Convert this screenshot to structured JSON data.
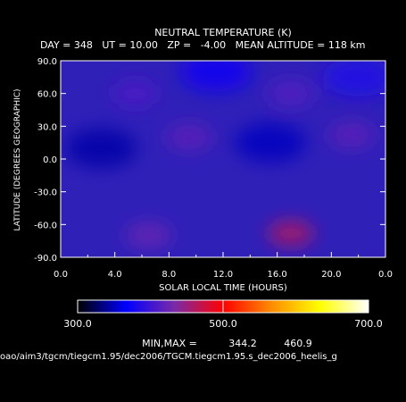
{
  "chart_data": {
    "type": "heatmap",
    "title": "NEUTRAL TEMPERATURE (K)",
    "subtitle": "DAY = 348   UT = 10.00   ZP =   -4.00   MEAN ALTITUDE = 118 km",
    "xlabel": "SOLAR LOCAL TIME (HOURS)",
    "ylabel": "LATITUDE (DEGREES GEOGRAPHIC)",
    "xlim": [
      0,
      24
    ],
    "ylim": [
      -90,
      90
    ],
    "x_tick_labels": [
      "0.0",
      "4.0",
      "8.0",
      "12.0",
      "16.0",
      "20.0",
      "0.0"
    ],
    "y_tick_labels": [
      "90.0",
      "60.0",
      "30.0",
      "0.0",
      "-30.0",
      "-60.0",
      "-90.0"
    ],
    "colorbar": {
      "range": [
        300,
        700
      ],
      "tick_labels": [
        "300.0",
        "500.0",
        "700.0"
      ],
      "stops": [
        "#000000",
        "#0000ff",
        "#7a2aa8",
        "#ff0000",
        "#ff8c00",
        "#ffff00",
        "#ffffff"
      ]
    },
    "minmax_label": "MIN,MAX =",
    "min": "344.2",
    "max": "460.9",
    "file_path": "oao/aim3/tgcm/tiegcm1.95/dec2006/TGCM.tiegcm1.95.s_dec2006_heelis_g",
    "field_features": [
      {
        "type": "cold",
        "x": 3.0,
        "lat": 10,
        "value": 344
      },
      {
        "type": "cold",
        "x": 15.5,
        "lat": 15,
        "value": 350
      },
      {
        "type": "cold",
        "x": 11.5,
        "lat": 80,
        "value": 375
      },
      {
        "type": "cold",
        "x": 22.0,
        "lat": 75,
        "value": 385
      },
      {
        "type": "warm",
        "x": 17.0,
        "lat": -68,
        "value": 461
      },
      {
        "type": "warm",
        "x": 6.5,
        "lat": -70,
        "value": 425
      },
      {
        "type": "warm",
        "x": 9.5,
        "lat": 20,
        "value": 420
      },
      {
        "type": "warm",
        "x": 21.5,
        "lat": 22,
        "value": 420
      },
      {
        "type": "warm",
        "x": 17.0,
        "lat": 60,
        "value": 415
      },
      {
        "type": "warm",
        "x": 5.5,
        "lat": 60,
        "value": 410
      }
    ]
  }
}
